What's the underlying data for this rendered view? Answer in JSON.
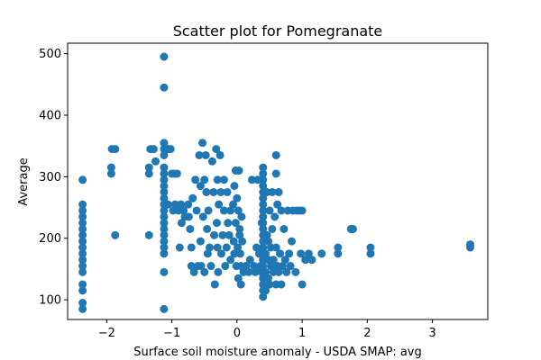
{
  "chart_data": {
    "type": "scatter",
    "title": "Scatter plot for Pomegranate",
    "xlabel": "Surface soil moisture anomaly  - USDA SMAP: avg",
    "ylabel": "Average",
    "xlim": [
      -2.6,
      3.85
    ],
    "ylim": [
      68,
      517
    ],
    "xticks": [
      -2,
      -1,
      0,
      1,
      2,
      3
    ],
    "xtick_labels": [
      "−2",
      "−1",
      "0",
      "1",
      "2",
      "3"
    ],
    "yticks": [
      100,
      200,
      300,
      400,
      500
    ],
    "ytick_labels": [
      "100",
      "200",
      "300",
      "400",
      "500"
    ],
    "grid": false,
    "marker_color": "#1f77b4",
    "series": [
      {
        "points": [
          [
            -2.37,
            85
          ],
          [
            -2.37,
            95
          ],
          [
            -2.37,
            115
          ],
          [
            -2.37,
            125
          ],
          [
            -2.37,
            145
          ],
          [
            -2.37,
            155
          ],
          [
            -2.37,
            165
          ],
          [
            -2.37,
            175
          ],
          [
            -2.37,
            185
          ],
          [
            -2.37,
            195
          ],
          [
            -2.37,
            205
          ],
          [
            -2.37,
            215
          ],
          [
            -2.37,
            225
          ],
          [
            -2.37,
            235
          ],
          [
            -2.37,
            245
          ],
          [
            -2.37,
            255
          ],
          [
            -2.37,
            295
          ],
          [
            -1.93,
            305
          ],
          [
            -1.93,
            315
          ],
          [
            -1.92,
            345
          ],
          [
            -1.87,
            345
          ],
          [
            -1.87,
            205
          ],
          [
            -1.35,
            205
          ],
          [
            -1.35,
            305
          ],
          [
            -1.35,
            315
          ],
          [
            -1.33,
            345
          ],
          [
            -1.28,
            345
          ],
          [
            -1.25,
            325
          ],
          [
            -1.12,
            85
          ],
          [
            -1.12,
            145
          ],
          [
            -1.12,
            175
          ],
          [
            -1.12,
            185
          ],
          [
            -1.12,
            195
          ],
          [
            -1.12,
            205
          ],
          [
            -1.12,
            215
          ],
          [
            -1.12,
            225
          ],
          [
            -1.12,
            235
          ],
          [
            -1.12,
            245
          ],
          [
            -1.12,
            255
          ],
          [
            -1.12,
            265
          ],
          [
            -1.12,
            275
          ],
          [
            -1.12,
            285
          ],
          [
            -1.12,
            295
          ],
          [
            -1.12,
            305
          ],
          [
            -1.12,
            315
          ],
          [
            -1.12,
            335
          ],
          [
            -1.12,
            345
          ],
          [
            -1.12,
            355
          ],
          [
            -1.12,
            445
          ],
          [
            -1.12,
            495
          ],
          [
            -1.06,
            345
          ],
          [
            -1.06,
            255
          ],
          [
            -1.02,
            345
          ],
          [
            -1.0,
            305
          ],
          [
            -0.98,
            245
          ],
          [
            -0.96,
            305
          ],
          [
            -0.95,
            255
          ],
          [
            -0.92,
            305
          ],
          [
            -0.9,
            245
          ],
          [
            -0.88,
            185
          ],
          [
            -0.86,
            255
          ],
          [
            -0.85,
            225
          ],
          [
            -0.82,
            245
          ],
          [
            -0.8,
            235
          ],
          [
            -0.75,
            255
          ],
          [
            -0.74,
            235
          ],
          [
            -0.72,
            215
          ],
          [
            -0.7,
            185
          ],
          [
            -0.7,
            155
          ],
          [
            -0.68,
            265
          ],
          [
            -0.66,
            145
          ],
          [
            -0.64,
            295
          ],
          [
            -0.62,
            245
          ],
          [
            -0.6,
            155
          ],
          [
            -0.58,
            335
          ],
          [
            -0.56,
            285
          ],
          [
            -0.56,
            195
          ],
          [
            -0.55,
            155
          ],
          [
            -0.53,
            355
          ],
          [
            -0.52,
            235
          ],
          [
            -0.5,
            295
          ],
          [
            -0.5,
            145
          ],
          [
            -0.48,
            335
          ],
          [
            -0.47,
            275
          ],
          [
            -0.46,
            215
          ],
          [
            -0.45,
            175
          ],
          [
            -0.44,
            245
          ],
          [
            -0.42,
            185
          ],
          [
            -0.4,
            155
          ],
          [
            -0.38,
            325
          ],
          [
            -0.36,
            275
          ],
          [
            -0.35,
            205
          ],
          [
            -0.34,
            125
          ],
          [
            -0.32,
            345
          ],
          [
            -0.31,
            225
          ],
          [
            -0.3,
            295
          ],
          [
            -0.3,
            185
          ],
          [
            -0.29,
            145
          ],
          [
            -0.28,
            255
          ],
          [
            -0.26,
            335
          ],
          [
            -0.25,
            275
          ],
          [
            -0.24,
            175
          ],
          [
            -0.22,
            205
          ],
          [
            -0.2,
            245
          ],
          [
            -0.2,
            295
          ],
          [
            -0.18,
            155
          ],
          [
            -0.16,
            185
          ],
          [
            -0.15,
            275
          ],
          [
            -0.14,
            225
          ],
          [
            -0.12,
            205
          ],
          [
            -0.1,
            245
          ],
          [
            -0.1,
            165
          ],
          [
            -0.06,
            255
          ],
          [
            -0.05,
            195
          ],
          [
            -0.04,
            285
          ],
          [
            -0.04,
            175
          ],
          [
            -0.02,
            310
          ],
          [
            -0.02,
            225
          ],
          [
            -0.01,
            155
          ],
          [
            0.0,
            265
          ],
          [
            0.01,
            185
          ],
          [
            0.02,
            245
          ],
          [
            0.02,
            135
          ],
          [
            0.03,
            310
          ],
          [
            0.04,
            205
          ],
          [
            0.04,
            215
          ],
          [
            0.05,
            175
          ],
          [
            0.06,
            125
          ],
          [
            0.06,
            155
          ],
          [
            0.07,
            235
          ],
          [
            0.08,
            195
          ],
          [
            0.1,
            145
          ],
          [
            0.14,
            155
          ],
          [
            0.18,
            145
          ],
          [
            0.2,
            165
          ],
          [
            0.23,
            295
          ],
          [
            0.26,
            155
          ],
          [
            0.28,
            145
          ],
          [
            0.3,
            185
          ],
          [
            0.32,
            295
          ],
          [
            0.34,
            175
          ],
          [
            0.36,
            155
          ],
          [
            0.38,
            225
          ],
          [
            0.38,
            145
          ],
          [
            0.4,
            105
          ],
          [
            0.4,
            115
          ],
          [
            0.4,
            125
          ],
          [
            0.4,
            135
          ],
          [
            0.4,
            145
          ],
          [
            0.4,
            155
          ],
          [
            0.4,
            165
          ],
          [
            0.4,
            175
          ],
          [
            0.4,
            185
          ],
          [
            0.4,
            195
          ],
          [
            0.4,
            205
          ],
          [
            0.4,
            215
          ],
          [
            0.4,
            225
          ],
          [
            0.4,
            235
          ],
          [
            0.4,
            245
          ],
          [
            0.4,
            255
          ],
          [
            0.4,
            265
          ],
          [
            0.4,
            275
          ],
          [
            0.4,
            285
          ],
          [
            0.4,
            295
          ],
          [
            0.4,
            305
          ],
          [
            0.4,
            315
          ],
          [
            0.44,
            115
          ],
          [
            0.44,
            145
          ],
          [
            0.44,
            175
          ],
          [
            0.46,
            205
          ],
          [
            0.46,
            275
          ],
          [
            0.48,
            135
          ],
          [
            0.48,
            165
          ],
          [
            0.48,
            195
          ],
          [
            0.5,
            245
          ],
          [
            0.5,
            125
          ],
          [
            0.52,
            155
          ],
          [
            0.52,
            185
          ],
          [
            0.54,
            275
          ],
          [
            0.54,
            215
          ],
          [
            0.56,
            145
          ],
          [
            0.56,
            165
          ],
          [
            0.58,
            235
          ],
          [
            0.6,
            125
          ],
          [
            0.6,
            185
          ],
          [
            0.6,
            305
          ],
          [
            0.6,
            335
          ],
          [
            0.62,
            155
          ],
          [
            0.62,
            255
          ],
          [
            0.64,
            275
          ],
          [
            0.64,
            145
          ],
          [
            0.66,
            175
          ],
          [
            0.68,
            245
          ],
          [
            0.68,
            125
          ],
          [
            0.7,
            155
          ],
          [
            0.72,
            215
          ],
          [
            0.74,
            165
          ],
          [
            0.76,
            145
          ],
          [
            0.78,
            245
          ],
          [
            0.8,
            175
          ],
          [
            0.82,
            155
          ],
          [
            0.84,
            195
          ],
          [
            0.86,
            245
          ],
          [
            0.9,
            145
          ],
          [
            0.92,
            245
          ],
          [
            0.96,
            245
          ],
          [
            0.98,
            175
          ],
          [
            1.0,
            125
          ],
          [
            1.0,
            245
          ],
          [
            1.05,
            165
          ],
          [
            1.1,
            175
          ],
          [
            1.15,
            165
          ],
          [
            1.3,
            175
          ],
          [
            1.55,
            175
          ],
          [
            1.55,
            185
          ],
          [
            1.75,
            215
          ],
          [
            1.76,
            215
          ],
          [
            1.77,
            215
          ],
          [
            1.78,
            215
          ],
          [
            2.05,
            175
          ],
          [
            2.05,
            185
          ],
          [
            3.58,
            185
          ],
          [
            3.58,
            190
          ]
        ]
      }
    ]
  }
}
